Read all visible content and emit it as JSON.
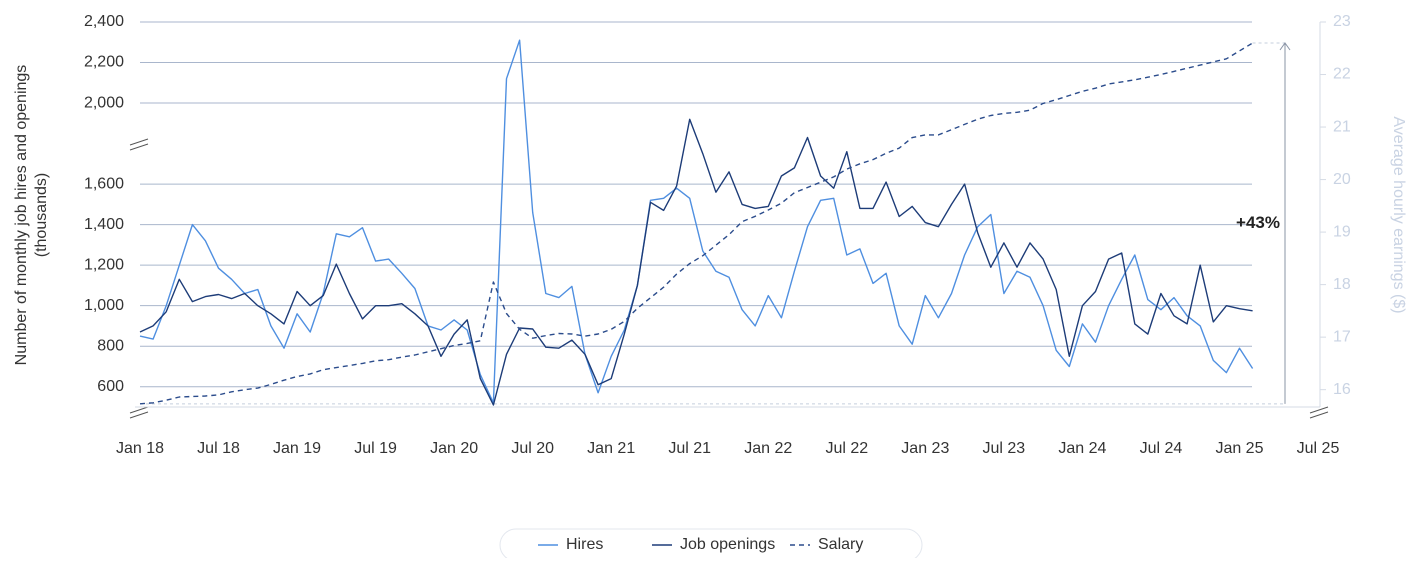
{
  "chart_data": {
    "type": "line",
    "ylabel": [
      "Number of monthly job hires and openings",
      "(thousands)"
    ],
    "y2label": "Average hourly earnings ($)",
    "x": [
      "2018-01",
      "2018-02",
      "2018-03",
      "2018-04",
      "2018-05",
      "2018-06",
      "2018-07",
      "2018-08",
      "2018-09",
      "2018-10",
      "2018-11",
      "2018-12",
      "2019-01",
      "2019-02",
      "2019-03",
      "2019-04",
      "2019-05",
      "2019-06",
      "2019-07",
      "2019-08",
      "2019-09",
      "2019-10",
      "2019-11",
      "2019-12",
      "2020-01",
      "2020-02",
      "2020-03",
      "2020-04",
      "2020-05",
      "2020-06",
      "2020-07",
      "2020-08",
      "2020-09",
      "2020-10",
      "2020-11",
      "2020-12",
      "2021-01",
      "2021-02",
      "2021-03",
      "2021-04",
      "2021-05",
      "2021-06",
      "2021-07",
      "2021-08",
      "2021-09",
      "2021-10",
      "2021-11",
      "2021-12",
      "2022-01",
      "2022-02",
      "2022-03",
      "2022-04",
      "2022-05",
      "2022-06",
      "2022-07",
      "2022-08",
      "2022-09",
      "2022-10",
      "2022-11",
      "2022-12",
      "2023-01",
      "2023-02",
      "2023-03",
      "2023-04",
      "2023-05",
      "2023-06",
      "2023-07",
      "2023-08",
      "2023-09",
      "2023-10",
      "2023-11",
      "2023-12",
      "2024-01",
      "2024-02",
      "2024-03",
      "2024-04",
      "2024-05",
      "2024-06",
      "2024-07",
      "2024-08",
      "2024-09",
      "2024-10",
      "2024-11",
      "2024-12",
      "2025-01",
      "2025-02"
    ],
    "xlim": [
      "2018-01",
      "2025-07"
    ],
    "xticks": [
      {
        "value": "2018-01",
        "label": "Jan 18"
      },
      {
        "value": "2018-07",
        "label": "Jul 18"
      },
      {
        "value": "2019-01",
        "label": "Jan 19"
      },
      {
        "value": "2019-07",
        "label": "Jul 19"
      },
      {
        "value": "2020-01",
        "label": "Jan 20"
      },
      {
        "value": "2020-07",
        "label": "Jul 20"
      },
      {
        "value": "2021-01",
        "label": "Jan 21"
      },
      {
        "value": "2021-07",
        "label": "Jul 21"
      },
      {
        "value": "2022-01",
        "label": "Jan 22"
      },
      {
        "value": "2022-07",
        "label": "Jul 22"
      },
      {
        "value": "2023-01",
        "label": "Jan 23"
      },
      {
        "value": "2023-07",
        "label": "Jul 23"
      },
      {
        "value": "2024-01",
        "label": "Jan 24"
      },
      {
        "value": "2024-07",
        "label": "Jul 24"
      },
      {
        "value": "2025-01",
        "label": "Jan 25"
      },
      {
        "value": "2025-07",
        "label": "Jul 25"
      }
    ],
    "ylim": [
      500,
      2400
    ],
    "yticks": [
      600,
      800,
      {
        "value": 1000,
        "label": "1,000"
      },
      {
        "value": 1200,
        "label": "1,200"
      },
      {
        "value": 1400,
        "label": "1,400"
      },
      {
        "value": 1600,
        "label": "1,600"
      },
      {
        "value": 2000,
        "label": "2,000"
      },
      {
        "value": 2200,
        "label": "2,200"
      },
      {
        "value": 2400,
        "label": "2,400"
      }
    ],
    "y2lim": [
      15.67,
      23
    ],
    "y2ticks": [
      16,
      17,
      18,
      19,
      20,
      21,
      22,
      23
    ],
    "grid": true,
    "legend": "bottom",
    "series": [
      {
        "name": "Hires",
        "color": "#4f8fe0",
        "line_style": "solid",
        "values": [
          850,
          835,
          1000,
          1200,
          1400,
          1320,
          1185,
          1130,
          1060,
          1080,
          900,
          790,
          960,
          870,
          1060,
          1355,
          1340,
          1385,
          1220,
          1230,
          1160,
          1085,
          900,
          880,
          930,
          880,
          660,
          520,
          2120,
          2310,
          1460,
          1060,
          1040,
          1095,
          760,
          570,
          750,
          880,
          1100,
          1520,
          1530,
          1580,
          1530,
          1270,
          1170,
          1140,
          980,
          900,
          1050,
          940,
          1170,
          1390,
          1520,
          1530,
          1250,
          1280,
          1110,
          1160,
          900,
          810,
          1050,
          940,
          1060,
          1250,
          1390,
          1450,
          1060,
          1170,
          1140,
          1000,
          780,
          700,
          910,
          820,
          1000,
          1130,
          1250,
          1030,
          980,
          1040,
          950,
          900,
          730,
          670,
          790,
          690
        ]
      },
      {
        "name": "Job openings",
        "color": "#1d3c78",
        "line_style": "solid",
        "values": [
          870,
          900,
          970,
          1130,
          1020,
          1045,
          1055,
          1035,
          1060,
          1000,
          960,
          910,
          1070,
          1000,
          1050,
          1205,
          1060,
          935,
          1000,
          1000,
          1010,
          960,
          900,
          750,
          860,
          930,
          640,
          510,
          760,
          890,
          885,
          795,
          790,
          830,
          760,
          610,
          640,
          860,
          1100,
          1510,
          1470,
          1590,
          1920,
          1750,
          1560,
          1660,
          1500,
          1480,
          1490,
          1640,
          1680,
          1830,
          1640,
          1580,
          1760,
          1480,
          1480,
          1610,
          1440,
          1490,
          1410,
          1390,
          1500,
          1600,
          1360,
          1190,
          1310,
          1190,
          1310,
          1230,
          1080,
          750,
          1000,
          1070,
          1230,
          1260,
          910,
          860,
          1060,
          950,
          910,
          1200,
          920,
          1000,
          985,
          975
        ]
      },
      {
        "name": "Salary",
        "color": "#2b4c8c",
        "line_style": "dashed",
        "axis": "y2",
        "values": [
          15.73,
          15.75,
          15.8,
          15.86,
          15.87,
          15.88,
          15.9,
          15.96,
          16.0,
          16.03,
          16.1,
          16.18,
          16.25,
          16.3,
          16.38,
          16.42,
          16.46,
          16.5,
          16.55,
          16.57,
          16.62,
          16.66,
          16.72,
          16.78,
          16.84,
          16.88,
          16.93,
          18.05,
          17.45,
          17.15,
          16.98,
          17.03,
          17.07,
          17.06,
          17.02,
          17.06,
          17.15,
          17.3,
          17.55,
          17.75,
          17.95,
          18.2,
          18.4,
          18.55,
          18.75,
          18.95,
          19.2,
          19.3,
          19.42,
          19.55,
          19.75,
          19.85,
          19.95,
          20.05,
          20.2,
          20.3,
          20.38,
          20.5,
          20.6,
          20.8,
          20.85,
          20.85,
          20.95,
          21.05,
          21.15,
          21.22,
          21.26,
          21.28,
          21.32,
          21.45,
          21.52,
          21.6,
          21.68,
          21.74,
          21.82,
          21.86,
          21.9,
          21.95,
          22.0,
          22.06,
          22.12,
          22.18,
          22.24,
          22.3,
          22.45,
          22.6
        ]
      }
    ],
    "annotations": [
      {
        "text": "+43%"
      }
    ]
  }
}
